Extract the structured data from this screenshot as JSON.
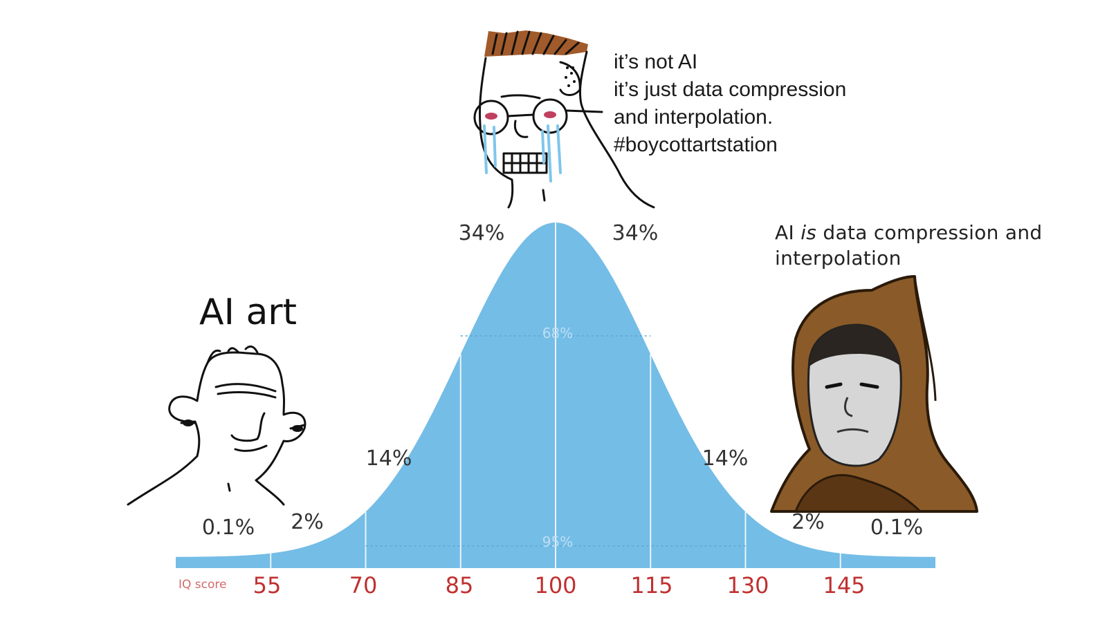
{
  "captions": {
    "middle": [
      "it’s not AI",
      "it’s just data compression",
      "and interpolation.",
      "#boycottartstation"
    ],
    "right_prefix": "AI ",
    "right_emphasis": "is",
    "right_suffix": " data compression and",
    "right_line2": "interpolation",
    "left": "AI art"
  },
  "chart_data": {
    "type": "area",
    "axis_label": "IQ score",
    "ticks": [
      "55",
      "70",
      "85",
      "100",
      "115",
      "130",
      "145"
    ],
    "tick_values": [
      55,
      70,
      85,
      100,
      115,
      130,
      145
    ],
    "mean": 100,
    "sd": 15,
    "band_labels": [
      "0.1%",
      "2%",
      "14%",
      "34%",
      "34%",
      "14%",
      "2%",
      "0.1%"
    ],
    "inner_labels": [
      "68%",
      "95%"
    ],
    "fill_color": "#74bde6",
    "tick_color": "#c03030"
  },
  "figures": {
    "left": "wojak-smiling-figure",
    "middle": "crying-glasses-wojak",
    "right": "hooded-figure"
  }
}
